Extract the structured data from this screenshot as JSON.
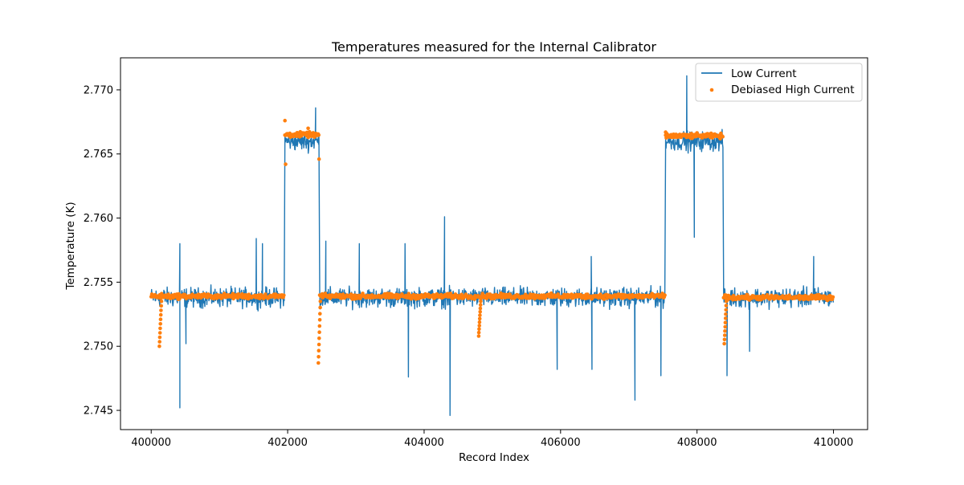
{
  "chart_data": {
    "type": "line",
    "title": "Temperatures measured for the Internal Calibrator",
    "xlabel": "Record Index",
    "ylabel": "Temperature (K)",
    "xlim": [
      399550,
      410500
    ],
    "ylim": [
      2.7435,
      2.7725
    ],
    "xticks": [
      400000,
      402000,
      404000,
      406000,
      408000,
      410000
    ],
    "xtick_labels": [
      "400000",
      "402000",
      "404000",
      "406000",
      "408000",
      "410000"
    ],
    "yticks": [
      2.745,
      2.75,
      2.755,
      2.76,
      2.765,
      2.77
    ],
    "ytick_labels": [
      "2.745",
      "2.750",
      "2.755",
      "2.760",
      "2.765",
      "2.770"
    ],
    "grid": false,
    "legend_position": "top-right",
    "colors": {
      "low": "#1f77b4",
      "high": "#ff7f0e"
    },
    "series": [
      {
        "name": "Low Current",
        "style": "line",
        "segments": [
          {
            "x": [
              400000,
              401950
            ],
            "level": 2.7538
          },
          {
            "x": [
              401960,
              402460
            ],
            "level": 2.766
          },
          {
            "x": [
              402470,
              407530
            ],
            "level": 2.7538
          },
          {
            "x": [
              407540,
              408380
            ],
            "level": 2.766
          },
          {
            "x": [
              408390,
              410000
            ],
            "level": 2.7538
          }
        ],
        "spikes": [
          {
            "x": 400420,
            "y": 2.7452
          },
          {
            "x": 400420,
            "y": 2.758
          },
          {
            "x": 400510,
            "y": 2.7502
          },
          {
            "x": 401540,
            "y": 2.7584
          },
          {
            "x": 401630,
            "y": 2.758
          },
          {
            "x": 402410,
            "y": 2.7686
          },
          {
            "x": 402560,
            "y": 2.7582
          },
          {
            "x": 403050,
            "y": 2.758
          },
          {
            "x": 403720,
            "y": 2.758
          },
          {
            "x": 403770,
            "y": 2.7476
          },
          {
            "x": 404300,
            "y": 2.7601
          },
          {
            "x": 404380,
            "y": 2.7446
          },
          {
            "x": 405950,
            "y": 2.7482
          },
          {
            "x": 406460,
            "y": 2.7482
          },
          {
            "x": 406450,
            "y": 2.757
          },
          {
            "x": 407090,
            "y": 2.7458
          },
          {
            "x": 407470,
            "y": 2.7477
          },
          {
            "x": 407850,
            "y": 2.7711
          },
          {
            "x": 407960,
            "y": 2.7585
          },
          {
            "x": 408440,
            "y": 2.7477
          },
          {
            "x": 408770,
            "y": 2.7496
          },
          {
            "x": 409710,
            "y": 2.757
          }
        ]
      },
      {
        "name": "Debiased High Current",
        "style": "scatter",
        "segments": [
          {
            "x": [
              400000,
              401950
            ],
            "level": 2.7539
          },
          {
            "x": [
              401960,
              402460
            ],
            "level": 2.7665
          },
          {
            "x": [
              402470,
              407530
            ],
            "level": 2.7539
          },
          {
            "x": [
              407540,
              408380
            ],
            "level": 2.7664
          },
          {
            "x": [
              408390,
              410000
            ],
            "level": 2.7538
          }
        ],
        "dips": [
          {
            "x": 400120,
            "y": 2.75
          },
          {
            "x": 402450,
            "y": 2.7487
          },
          {
            "x": 404800,
            "y": 2.7508
          },
          {
            "x": 408400,
            "y": 2.7502
          }
        ]
      }
    ]
  }
}
